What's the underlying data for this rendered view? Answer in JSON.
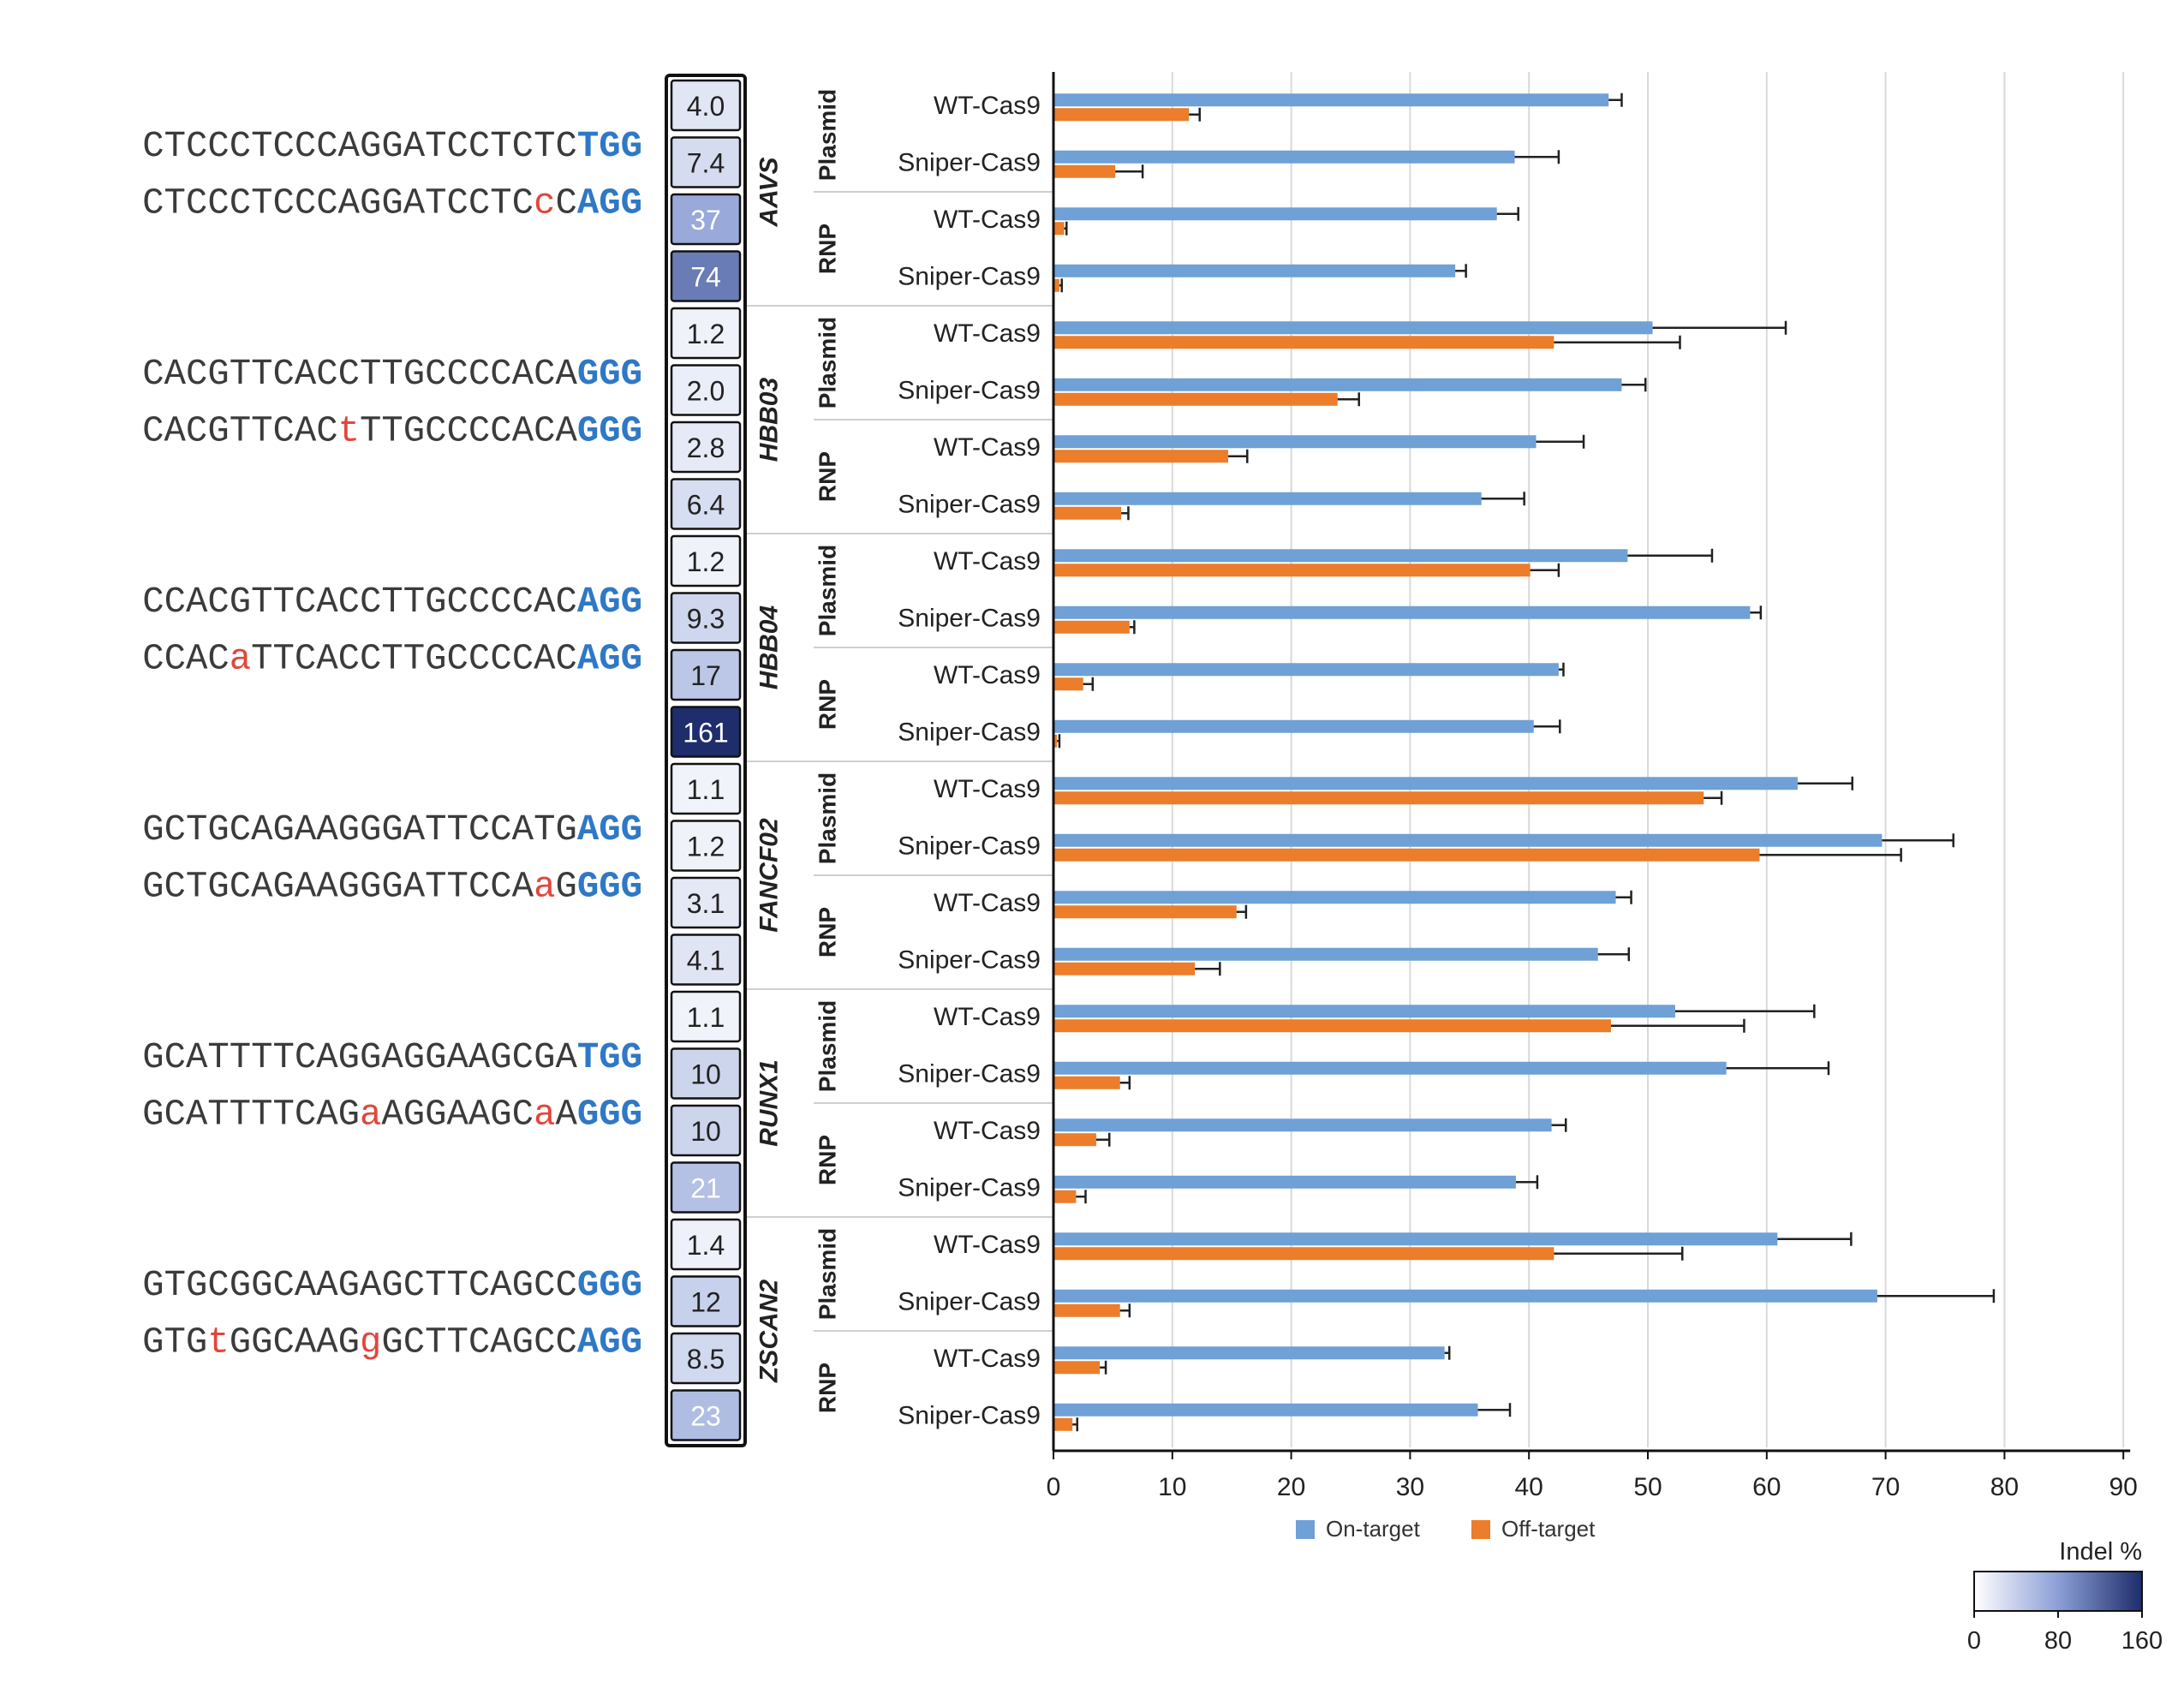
{
  "chart_data": {
    "type": "bar",
    "orientation": "horizontal",
    "xlim": [
      0,
      90
    ],
    "x_ticks": [
      "0",
      "10",
      "20",
      "30",
      "40",
      "50",
      "60",
      "70",
      "80",
      "90"
    ],
    "grid": "vertical",
    "legend_position": "bottom",
    "series": [
      {
        "name": "On-target",
        "color": "#6fa0d6"
      },
      {
        "name": "Off-target",
        "color": "#ec7d2a"
      }
    ],
    "heatmap": {
      "colorbar_title": "Indel %",
      "range": [
        0,
        160
      ],
      "ticks": [
        "0",
        "80",
        "160"
      ],
      "color_low": "#ffffff",
      "color_high": "#1e2d6b"
    },
    "targets": [
      {
        "name": "AAVS",
        "on_seq": [
          {
            "t": "CTCCCTCCCAGGATCCTCTC",
            "s": "n"
          },
          {
            "t": "TGG",
            "s": "p"
          }
        ],
        "off_seq": [
          {
            "t": "CTCCCTCCCAGGATCCTC",
            "s": "n"
          },
          {
            "t": "c",
            "s": "m"
          },
          {
            "t": "C",
            "s": "n"
          },
          {
            "t": "AGG",
            "s": "p"
          }
        ],
        "groups": [
          {
            "delivery": "Plasmid",
            "rows": [
              {
                "variant": "WT-Cas9",
                "heat": "4.0",
                "heat_value": 4.0,
                "on": 46.7,
                "on_err": 1.1,
                "off": 11.4,
                "off_err": 0.9
              },
              {
                "variant": "Sniper-Cas9",
                "heat": "7.4",
                "heat_value": 7.4,
                "on": 38.8,
                "on_err": 3.7,
                "off": 5.2,
                "off_err": 2.3
              }
            ]
          },
          {
            "delivery": "RNP",
            "rows": [
              {
                "variant": "WT-Cas9",
                "heat": "37",
                "heat_value": 37,
                "on": 37.3,
                "on_err": 1.8,
                "off": 0.9,
                "off_err": 0.2
              },
              {
                "variant": "Sniper-Cas9",
                "heat": "74",
                "heat_value": 74,
                "on": 33.8,
                "on_err": 0.9,
                "off": 0.5,
                "off_err": 0.2
              }
            ]
          }
        ]
      },
      {
        "name": "HBB03",
        "on_seq": [
          {
            "t": "CACGTTCACCTTGCCCCACA",
            "s": "n"
          },
          {
            "t": "GGG",
            "s": "p"
          }
        ],
        "off_seq": [
          {
            "t": "CACGTTCAC",
            "s": "n"
          },
          {
            "t": "t",
            "s": "m"
          },
          {
            "t": "TTGCCCCACA",
            "s": "n"
          },
          {
            "t": "GGG",
            "s": "p"
          }
        ],
        "groups": [
          {
            "delivery": "Plasmid",
            "rows": [
              {
                "variant": "WT-Cas9",
                "heat": "1.2",
                "heat_value": 1.2,
                "on": 50.4,
                "on_err": 11.2,
                "off": 42.1,
                "off_err": 10.6
              },
              {
                "variant": "Sniper-Cas9",
                "heat": "2.0",
                "heat_value": 2.0,
                "on": 47.8,
                "on_err": 2.0,
                "off": 23.9,
                "off_err": 1.8
              }
            ]
          },
          {
            "delivery": "RNP",
            "rows": [
              {
                "variant": "WT-Cas9",
                "heat": "2.8",
                "heat_value": 2.8,
                "on": 40.6,
                "on_err": 4.0,
                "off": 14.7,
                "off_err": 1.6
              },
              {
                "variant": "Sniper-Cas9",
                "heat": "6.4",
                "heat_value": 6.4,
                "on": 36.0,
                "on_err": 3.6,
                "off": 5.7,
                "off_err": 0.6
              }
            ]
          }
        ]
      },
      {
        "name": "HBB04",
        "on_seq": [
          {
            "t": "CCACGTTCACCTTGCCCCAC",
            "s": "n"
          },
          {
            "t": "AGG",
            "s": "p"
          }
        ],
        "off_seq": [
          {
            "t": "CCAC",
            "s": "n"
          },
          {
            "t": "a",
            "s": "m"
          },
          {
            "t": "TTCACCTTGCCCCAC",
            "s": "n"
          },
          {
            "t": "AGG",
            "s": "p"
          }
        ],
        "groups": [
          {
            "delivery": "Plasmid",
            "rows": [
              {
                "variant": "WT-Cas9",
                "heat": "1.2",
                "heat_value": 1.2,
                "on": 48.3,
                "on_err": 7.1,
                "off": 40.1,
                "off_err": 2.4
              },
              {
                "variant": "Sniper-Cas9",
                "heat": "9.3",
                "heat_value": 9.3,
                "on": 58.6,
                "on_err": 0.9,
                "off": 6.4,
                "off_err": 0.4
              }
            ]
          },
          {
            "delivery": "RNP",
            "rows": [
              {
                "variant": "WT-Cas9",
                "heat": "17",
                "heat_value": 17,
                "on": 42.5,
                "on_err": 0.4,
                "off": 2.5,
                "off_err": 0.8
              },
              {
                "variant": "Sniper-Cas9",
                "heat": "161",
                "heat_value": 161,
                "on": 40.4,
                "on_err": 2.2,
                "off": 0.3,
                "off_err": 0.2
              }
            ]
          }
        ]
      },
      {
        "name": "FANCF02",
        "on_seq": [
          {
            "t": "GCTGCAGAAGGGATTCCATG",
            "s": "n"
          },
          {
            "t": "AGG",
            "s": "p"
          }
        ],
        "off_seq": [
          {
            "t": "GCTGCAGAAGGGATTCCA",
            "s": "n"
          },
          {
            "t": "a",
            "s": "m"
          },
          {
            "t": "G",
            "s": "n"
          },
          {
            "t": "GGG",
            "s": "p"
          }
        ],
        "groups": [
          {
            "delivery": "Plasmid",
            "rows": [
              {
                "variant": "WT-Cas9",
                "heat": "1.1",
                "heat_value": 1.1,
                "on": 62.6,
                "on_err": 4.6,
                "off": 54.7,
                "off_err": 1.5
              },
              {
                "variant": "Sniper-Cas9",
                "heat": "1.2",
                "heat_value": 1.2,
                "on": 69.7,
                "on_err": 6.0,
                "off": 59.4,
                "off_err": 11.9
              }
            ]
          },
          {
            "delivery": "RNP",
            "rows": [
              {
                "variant": "WT-Cas9",
                "heat": "3.1",
                "heat_value": 3.1,
                "on": 47.3,
                "on_err": 1.3,
                "off": 15.4,
                "off_err": 0.8
              },
              {
                "variant": "Sniper-Cas9",
                "heat": "4.1",
                "heat_value": 4.1,
                "on": 45.8,
                "on_err": 2.6,
                "off": 11.9,
                "off_err": 2.1
              }
            ]
          }
        ]
      },
      {
        "name": "RUNX1",
        "on_seq": [
          {
            "t": "GCATTTTCAGGAGGAAGCGA",
            "s": "n"
          },
          {
            "t": "TGG",
            "s": "p"
          }
        ],
        "off_seq": [
          {
            "t": "GCATTTTCAG",
            "s": "n"
          },
          {
            "t": "a",
            "s": "m"
          },
          {
            "t": "AGGAAGC",
            "s": "n"
          },
          {
            "t": "a",
            "s": "m"
          },
          {
            "t": "A",
            "s": "n"
          },
          {
            "t": "GGG",
            "s": "p"
          }
        ],
        "groups": [
          {
            "delivery": "Plasmid",
            "rows": [
              {
                "variant": "WT-Cas9",
                "heat": "1.1",
                "heat_value": 1.1,
                "on": 52.3,
                "on_err": 11.7,
                "off": 46.9,
                "off_err": 11.2
              },
              {
                "variant": "Sniper-Cas9",
                "heat": "10",
                "heat_value": 10,
                "on": 56.6,
                "on_err": 8.6,
                "off": 5.6,
                "off_err": 0.8
              }
            ]
          },
          {
            "delivery": "RNP",
            "rows": [
              {
                "variant": "WT-Cas9",
                "heat": "10",
                "heat_value": 10,
                "on": 41.9,
                "on_err": 1.2,
                "off": 3.6,
                "off_err": 1.1
              },
              {
                "variant": "Sniper-Cas9",
                "heat": "21",
                "heat_value": 21,
                "on": 38.9,
                "on_err": 1.8,
                "off": 1.9,
                "off_err": 0.8
              }
            ]
          }
        ]
      },
      {
        "name": "ZSCAN2",
        "on_seq": [
          {
            "t": "GTGCGGCAAGAGCTTCAGCC",
            "s": "n"
          },
          {
            "t": "GGG",
            "s": "p"
          }
        ],
        "off_seq": [
          {
            "t": "GTG",
            "s": "n"
          },
          {
            "t": "t",
            "s": "m"
          },
          {
            "t": "GGCAAG",
            "s": "n"
          },
          {
            "t": "g",
            "s": "m"
          },
          {
            "t": "GCTTCAGCC",
            "s": "n"
          },
          {
            "t": "AGG",
            "s": "p"
          }
        ],
        "groups": [
          {
            "delivery": "Plasmid",
            "rows": [
              {
                "variant": "WT-Cas9",
                "heat": "1.4",
                "heat_value": 1.4,
                "on": 60.9,
                "on_err": 6.2,
                "off": 42.1,
                "off_err": 10.8
              },
              {
                "variant": "Sniper-Cas9",
                "heat": "12",
                "heat_value": 12,
                "on": 69.3,
                "on_err": 9.8,
                "off": 5.6,
                "off_err": 0.8
              }
            ]
          },
          {
            "delivery": "RNP",
            "rows": [
              {
                "variant": "WT-Cas9",
                "heat": "8.5",
                "heat_value": 8.5,
                "on": 32.9,
                "on_err": 0.4,
                "off": 3.9,
                "off_err": 0.5
              },
              {
                "variant": "Sniper-Cas9",
                "heat": "23",
                "heat_value": 23,
                "on": 35.7,
                "on_err": 2.7,
                "off": 1.6,
                "off_err": 0.4
              }
            ]
          }
        ]
      }
    ]
  }
}
